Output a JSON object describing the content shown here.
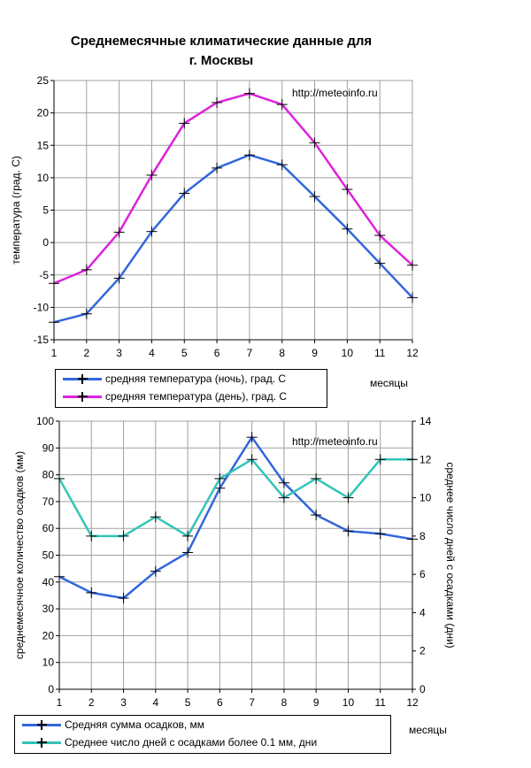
{
  "title": "Среднемесячные климатические данные для г. Москвы",
  "title_lines": [
    "Среднемесячные климатические данные для",
    "г. Москвы"
  ],
  "chart_data": [
    {
      "type": "line",
      "watermark": "http://meteoinfo.ru",
      "xlabel": "месяцы",
      "ylabel": "температура (град. С)",
      "x": [
        1,
        2,
        3,
        4,
        5,
        6,
        7,
        8,
        9,
        10,
        11,
        12
      ],
      "ylim": [
        -15,
        25
      ],
      "yticks": [
        -15,
        -10,
        -5,
        0,
        5,
        10,
        15,
        20,
        25
      ],
      "grid": true,
      "legend": "bottom",
      "series": [
        {
          "name": "средняя температура (ночь), град. С",
          "color": "#3366dd",
          "values": [
            -12.3,
            -11.0,
            -5.5,
            1.7,
            7.6,
            11.5,
            13.5,
            12.0,
            7.1,
            2.1,
            -3.2,
            -8.5
          ]
        },
        {
          "name": "средняя температура (день), град. С",
          "color": "#dd22dd",
          "values": [
            -6.3,
            -4.2,
            1.6,
            10.4,
            18.4,
            21.6,
            23.0,
            21.3,
            15.4,
            8.2,
            1.1,
            -3.5
          ]
        }
      ]
    },
    {
      "type": "line",
      "watermark": "http://meteoinfo.ru",
      "xlabel": "месяцы",
      "ylabel": "среднемесячное количество осадков (мм)",
      "ylabel_right": "среднее число дней с осадками (дни)",
      "x": [
        1,
        2,
        3,
        4,
        5,
        6,
        7,
        8,
        9,
        10,
        11,
        12
      ],
      "ylim": [
        0,
        100
      ],
      "yticks": [
        0,
        10,
        20,
        30,
        40,
        50,
        60,
        70,
        80,
        90,
        100
      ],
      "ylim_right": [
        0,
        14
      ],
      "yticks_right": [
        0,
        2,
        4,
        6,
        8,
        10,
        12,
        14
      ],
      "grid": true,
      "legend": "bottom",
      "series": [
        {
          "name": "Средняя сумма осадков, мм",
          "color": "#3366dd",
          "axis": "left",
          "values": [
            42,
            36,
            34,
            44,
            51,
            75,
            94,
            77,
            65,
            59,
            58,
            56
          ]
        },
        {
          "name": "Среднее число дней с  осадками более 0.1 мм, дни",
          "color": "#33c4b8",
          "axis": "right",
          "values": [
            11,
            8,
            8,
            9,
            8,
            11,
            12,
            10,
            11,
            10,
            12,
            12
          ]
        }
      ]
    }
  ]
}
